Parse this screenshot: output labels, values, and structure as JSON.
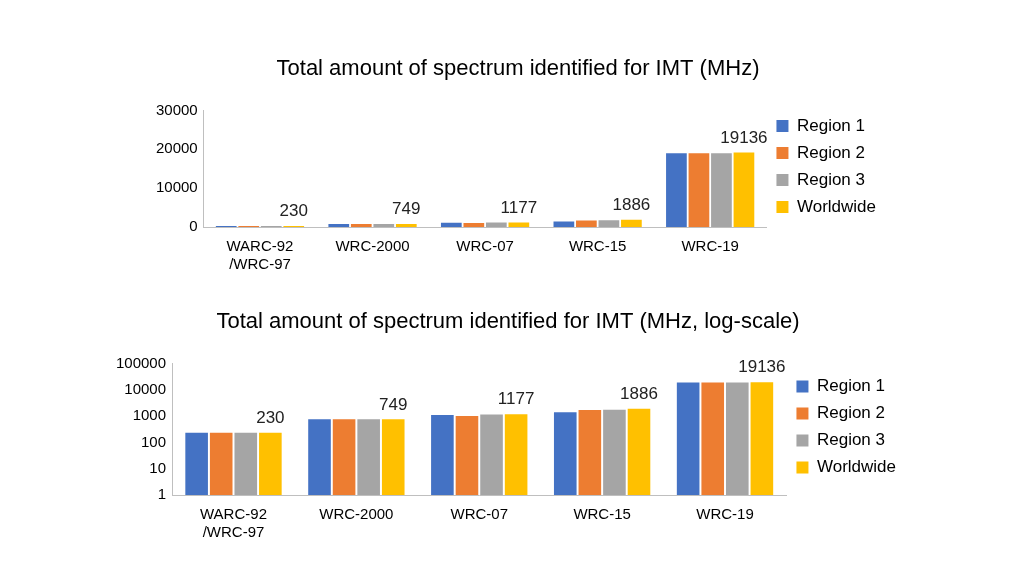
{
  "chart_data": [
    {
      "type": "bar",
      "title": "Total amount of spectrum identified for IMT (MHz)",
      "categories": [
        "WARC-92/WRC-97",
        "WRC-2000",
        "WRC-07",
        "WRC-15",
        "WRC-19"
      ],
      "series": [
        {
          "name": "Region 1",
          "color": "#4472c4",
          "values": [
            230,
            749,
            1100,
            1400,
            19000
          ]
        },
        {
          "name": "Region 2",
          "color": "#ed7d31",
          "values": [
            230,
            749,
            1000,
            1700,
            19000
          ]
        },
        {
          "name": "Region 3",
          "color": "#a5a5a5",
          "values": [
            230,
            749,
            1150,
            1750,
            19000
          ]
        },
        {
          "name": "Worldwide",
          "color": "#ffc000",
          "values": [
            230,
            749,
            1177,
            1886,
            19136
          ],
          "data_labels": true
        }
      ],
      "ylim": [
        0,
        30000
      ],
      "yticks": [
        0,
        10000,
        20000,
        30000
      ],
      "grid": false,
      "legend": "right"
    },
    {
      "type": "bar",
      "title": "Total amount of spectrum identified for IMT (MHz, log-scale)",
      "categories": [
        "WARC-92/WRC-97",
        "WRC-2000",
        "WRC-07",
        "WRC-15",
        "WRC-19"
      ],
      "series": [
        {
          "name": "Region 1",
          "color": "#4472c4",
          "values": [
            230,
            749,
            1100,
            1400,
            19000
          ]
        },
        {
          "name": "Region 2",
          "color": "#ed7d31",
          "values": [
            230,
            749,
            1000,
            1700,
            19000
          ]
        },
        {
          "name": "Region 3",
          "color": "#a5a5a5",
          "values": [
            230,
            749,
            1150,
            1750,
            19000
          ]
        },
        {
          "name": "Worldwide",
          "color": "#ffc000",
          "values": [
            230,
            749,
            1177,
            1886,
            19136
          ],
          "data_labels": true
        }
      ],
      "log": "y",
      "ylim": [
        1,
        100000
      ],
      "yticks": [
        1,
        10,
        100,
        1000,
        10000,
        100000
      ],
      "grid": false,
      "legend": "right"
    }
  ]
}
